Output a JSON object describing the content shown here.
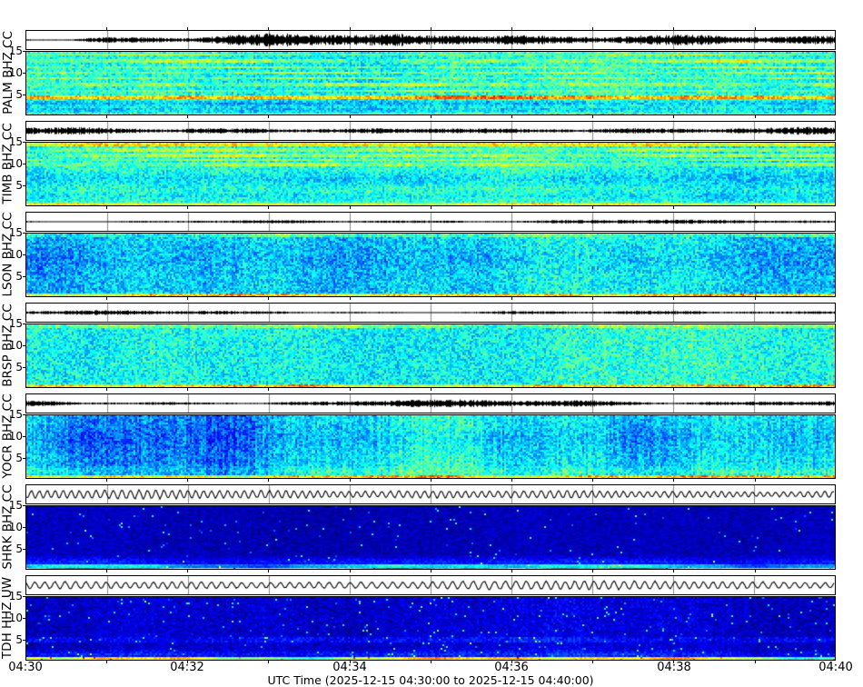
{
  "figure": {
    "xlabel": "UTC Time (2025-12-15 04:30:00 to 2025-12-15 04:40:00)",
    "x_tick_labels": [
      "04:30",
      "04:32",
      "04:34",
      "04:36",
      "04:38",
      "04:40"
    ],
    "freq_ticks": [
      "15",
      "10",
      "5"
    ],
    "background": "#ffffff",
    "frame_color": "#000000",
    "gridline_color": "#888888"
  },
  "chart_data": {
    "type": "heatmap",
    "subtype": "seismic-spectrogram-multipanel",
    "xlabel": "UTC Time (2025-12-15 04:30:00 to 2025-12-15 04:40:00)",
    "x_ticks": [
      "04:30",
      "04:32",
      "04:34",
      "04:36",
      "04:38",
      "04:40"
    ],
    "x_minutes_total": 10,
    "freq_axis_ticks": [
      15,
      10,
      5
    ],
    "freq_range": [
      0,
      15
    ],
    "colormap": "jet",
    "panels": [
      {
        "label": "PALM BHZ CC",
        "wave": {
          "style": "noise",
          "amp": 8.5,
          "env": 0.5
        },
        "spec": {
          "base": 0.4,
          "noise": 0.1,
          "colvar": 0.03,
          "spike": 0,
          "bands": [
            {
              "hz": 14.5,
              "w": 0.35,
              "v": 0.11,
              "dash": 0.8
            },
            {
              "hz": 13.0,
              "w": 0.3,
              "v": 0.1,
              "dash": 0.9
            },
            {
              "hz": 11.6,
              "w": 0.3,
              "v": 0.09,
              "dash": 0.9
            },
            {
              "hz": 10.2,
              "w": 0.35,
              "v": 0.11,
              "dash": 0.8
            },
            {
              "hz": 8.8,
              "w": 0.3,
              "v": 0.09,
              "dash": 0.9
            },
            {
              "hz": 7.4,
              "w": 0.3,
              "v": 0.1,
              "dash": 0.9
            },
            {
              "hz": 6.0,
              "w": 0.3,
              "v": 0.09,
              "dash": 0.9
            },
            {
              "hz": 4.3,
              "w": 0.3,
              "v": 0.3,
              "dash": 0.25
            },
            {
              "hz": 2.9,
              "w": 0.9,
              "v": -0.1,
              "dash": 0.4,
              "soft": true
            },
            {
              "hz": 1.4,
              "w": 0.9,
              "v": -0.08,
              "dash": 0.4,
              "soft": true
            },
            {
              "hz": 0.2,
              "w": 0.45,
              "v": 0.22,
              "dash": 0.3
            }
          ]
        }
      },
      {
        "label": "TIMB BHZ CC",
        "wave": {
          "style": "noise",
          "amp": 5.5,
          "env": 0.35
        },
        "spec": {
          "base": 0.4,
          "noise": 0.1,
          "colvar": 0.03,
          "spike": 0,
          "bands": [
            {
              "hz": 14.8,
              "w": 0.35,
              "v": 0.22,
              "dash": 0.15
            },
            {
              "hz": 13.4,
              "w": 0.3,
              "v": 0.1,
              "dash": 0.8
            },
            {
              "hz": 12.2,
              "w": 0.3,
              "v": 0.11,
              "dash": 0.7
            },
            {
              "hz": 11.0,
              "w": 0.3,
              "v": 0.1,
              "dash": 0.8
            },
            {
              "hz": 10.0,
              "w": 0.3,
              "v": 0.09,
              "dash": 0.8
            },
            {
              "hz": 6.5,
              "w": 2.2,
              "v": -0.07,
              "dash": 0.3,
              "soft": true
            },
            {
              "hz": 2.5,
              "w": 1.2,
              "v": -0.04,
              "dash": 0.3,
              "soft": true
            },
            {
              "hz": 0.2,
              "w": 0.5,
              "v": 0.18,
              "dash": 0.3
            }
          ]
        }
      },
      {
        "label": "LSON BHZ CC",
        "wave": {
          "style": "noise",
          "amp": 2.6,
          "env": 0.4
        },
        "spec": {
          "base": 0.33,
          "noise": 0.11,
          "colvar": 0.05,
          "spike": 0,
          "bands": [
            {
              "hz": 14.8,
              "w": 0.3,
              "v": 0.1,
              "dash": 0.7
            },
            {
              "hz": 9.0,
              "w": 4.0,
              "v": -0.03,
              "dash": 0.2,
              "soft": true
            },
            {
              "hz": 0.25,
              "w": 0.5,
              "v": 0.32,
              "dash": 0.25
            }
          ]
        }
      },
      {
        "label": "BRSP BHZ CC",
        "wave": {
          "style": "noise",
          "amp": 3.0,
          "env": 0.45
        },
        "spec": {
          "base": 0.39,
          "noise": 0.11,
          "colvar": 0.03,
          "spike": 0,
          "bands": [
            {
              "hz": 14.8,
              "w": 0.3,
              "v": 0.1,
              "dash": 0.6
            },
            {
              "hz": 0.25,
              "w": 0.5,
              "v": 0.26,
              "dash": 0.3
            }
          ]
        }
      },
      {
        "label": "YOCR BHZ CC",
        "wave": {
          "style": "noise",
          "amp": 4.5,
          "env": 0.5
        },
        "spec": {
          "base": 0.33,
          "noise": 0.1,
          "colvar": 0.09,
          "spike": 0,
          "bands": [
            {
              "hz": 9.5,
              "w": 4.5,
              "v": -0.04,
              "dash": 0.3,
              "soft": true
            },
            {
              "hz": 1.8,
              "w": 1.6,
              "v": 0.07,
              "dash": 0.4,
              "soft": true
            },
            {
              "hz": 0.25,
              "w": 0.5,
              "v": 0.3,
              "dash": 0.3
            }
          ]
        }
      },
      {
        "label": "SHRK BHZ CC",
        "wave": {
          "style": "osc",
          "amp": 5.5,
          "period": 9
        },
        "spec": {
          "base": 0.055,
          "noise": 0.045,
          "colvar": 0.01,
          "spike": 0.012,
          "bands": [
            {
              "hz": 1.8,
              "w": 1.8,
              "v": 0.1,
              "dash": 0.3,
              "soft": true
            },
            {
              "hz": 0.6,
              "w": 0.5,
              "v": 0.22,
              "dash": 0.5
            },
            {
              "hz": 0.2,
              "w": 0.35,
              "v": 0.42,
              "dash": 0.25
            }
          ]
        }
      },
      {
        "label": "TDH HHZ UW",
        "wave": {
          "style": "osc",
          "amp": 5.5,
          "period": 11
        },
        "spec": {
          "base": 0.075,
          "noise": 0.06,
          "colvar": 0.02,
          "spike": 0.02,
          "bands": [
            {
              "hz": 5.0,
              "w": 0.5,
              "v": 0.05,
              "dash": 0.5
            },
            {
              "hz": 1.5,
              "w": 1.3,
              "v": 0.08,
              "dash": 0.4,
              "soft": true
            },
            {
              "hz": 0.25,
              "w": 0.45,
              "v": 0.5,
              "dash": 0.35
            }
          ]
        }
      }
    ]
  }
}
